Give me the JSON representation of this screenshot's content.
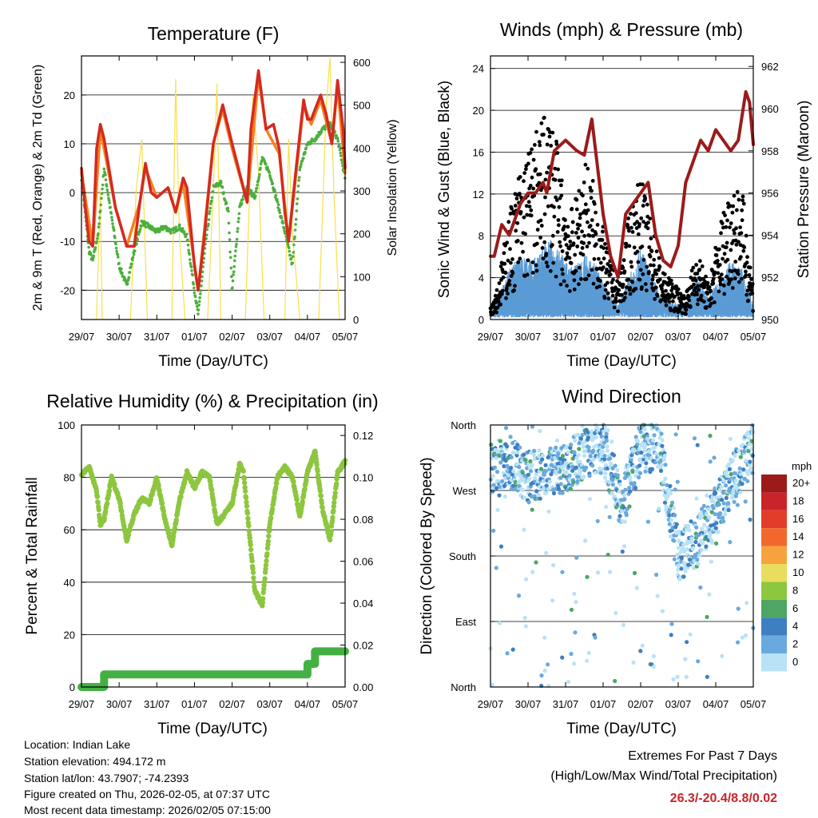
{
  "x_ticks": [
    "29/07",
    "30/07",
    "31/07",
    "01/07",
    "02/07",
    "03/07",
    "04/07",
    "05/07"
  ],
  "chart_data": [
    {
      "type": "line",
      "title": "Temperature (F)",
      "xlabel": "Time (Day/UTC)",
      "ylabel": "2m & 9m T (Red, Orange) & 2m Td (Green)",
      "ylabel_right": "Solar Insolation (Yellow)",
      "ylim": [
        -26,
        28
      ],
      "ylim_right": [
        0,
        615
      ],
      "yticks": [
        -20,
        -10,
        0,
        10,
        20
      ],
      "yticks_right": [
        0,
        100,
        200,
        300,
        400,
        500,
        600
      ],
      "xlim": [
        0,
        7
      ],
      "series": [
        {
          "name": "2m T",
          "color": "#d42a20",
          "x": [
            0,
            0.1,
            0.2,
            0.3,
            0.4,
            0.5,
            0.6,
            0.9,
            1.2,
            1.4,
            1.55,
            1.7,
            1.85,
            2.0,
            2.15,
            2.3,
            2.5,
            2.7,
            2.8,
            3.0,
            3.1,
            3.25,
            3.5,
            3.75,
            4.0,
            4.1,
            4.2,
            4.4,
            4.5,
            4.7,
            4.9,
            5.1,
            5.25,
            5.4,
            5.5,
            5.7,
            5.9,
            6.0,
            6.1,
            6.35,
            6.5,
            6.65,
            6.8,
            6.95,
            7.0
          ],
          "y": [
            5,
            -3,
            -10,
            -11,
            9,
            14,
            11,
            -3,
            -11,
            -11,
            -2,
            6,
            0,
            -1,
            0,
            1,
            -4,
            3,
            1,
            -15,
            -20,
            -10,
            10,
            18,
            10,
            7,
            4,
            -2,
            13,
            25,
            13,
            14,
            9,
            -4,
            -10,
            5,
            19,
            15,
            15,
            20,
            16,
            10,
            23,
            13,
            5
          ]
        },
        {
          "name": "9m T",
          "color": "#f5821f",
          "x": [
            0,
            0.3,
            0.5,
            0.9,
            1.2,
            1.55,
            1.7,
            2.0,
            2.3,
            2.5,
            2.7,
            3.1,
            3.5,
            3.75,
            4.0,
            4.4,
            4.7,
            4.9,
            5.25,
            5.5,
            5.9,
            6.1,
            6.35,
            6.65,
            6.8,
            7.0
          ],
          "y": [
            4,
            -11,
            13,
            -3,
            -11,
            -2,
            5,
            -1,
            1,
            -4,
            2,
            -20,
            10,
            17,
            9,
            -2,
            24,
            13,
            8,
            -10,
            18,
            14,
            19,
            10,
            22,
            4
          ]
        },
        {
          "name": "2m Td",
          "color": "#4caf3d",
          "x": [
            0,
            0.2,
            0.3,
            0.45,
            0.6,
            0.8,
            1.0,
            1.2,
            1.4,
            1.6,
            1.8,
            2.0,
            2.2,
            2.4,
            2.6,
            2.8,
            3.0,
            3.1,
            3.3,
            3.5,
            3.7,
            3.9,
            4.0,
            4.2,
            4.4,
            4.6,
            4.8,
            5.0,
            5.2,
            5.4,
            5.6,
            5.8,
            6.0,
            6.2,
            6.4,
            6.6,
            6.8,
            7.0
          ],
          "y": [
            3,
            -12,
            -14,
            -8,
            5,
            -5,
            -15,
            -19,
            -12,
            -6,
            -7,
            -8,
            -7,
            -8,
            -7,
            -9,
            -20,
            -25,
            -10,
            1,
            2,
            -4,
            -20,
            -3,
            1,
            -1,
            7,
            4,
            -2,
            -8,
            -15,
            5,
            10,
            11,
            13,
            14,
            11,
            3
          ]
        },
        {
          "name": "Solar Insolation",
          "color": "#f7e04a",
          "axis": "right",
          "x": [
            0,
            0.1,
            0.4,
            0.5,
            0.55,
            1.0,
            1.3,
            1.45,
            1.6,
            1.75,
            2.0,
            2.4,
            2.5,
            2.6,
            2.75,
            3.0,
            3.35,
            3.5,
            3.6,
            3.7,
            4.0,
            4.35,
            4.55,
            4.7,
            4.85,
            5.0,
            5.4,
            5.5,
            5.6,
            5.8,
            6.0,
            6.3,
            6.5,
            6.6,
            6.7,
            6.85,
            7.0
          ],
          "y": [
            0,
            0,
            0,
            300,
            0,
            0,
            0,
            300,
            420,
            0,
            0,
            0,
            560,
            200,
            0,
            0,
            0,
            300,
            550,
            0,
            0,
            0,
            520,
            340,
            0,
            0,
            0,
            420,
            200,
            0,
            0,
            0,
            500,
            610,
            300,
            0,
            0
          ]
        }
      ]
    },
    {
      "type": "scatter",
      "title": "Winds (mph) & Pressure (mb)",
      "xlabel": "Time (Day/UTC)",
      "ylabel": "Sonic Wind & Gust (Blue, Black)",
      "ylabel_right": "Station Pressure (Maroon)",
      "ylim": [
        0,
        25.2
      ],
      "ylim_right": [
        950,
        962.5
      ],
      "yticks": [
        0,
        4,
        8,
        12,
        16,
        20,
        24
      ],
      "yticks_right": [
        950,
        952,
        954,
        956,
        958,
        960,
        962
      ],
      "xlim": [
        0,
        7
      ],
      "series": [
        {
          "name": "Gust envelope",
          "color": "#000000",
          "x": [
            0,
            0.2,
            0.5,
            0.8,
            1.1,
            1.4,
            1.6,
            1.9,
            2.2,
            2.5,
            2.8,
            3.1,
            3.4,
            3.7,
            4.0,
            4.3,
            4.6,
            4.9,
            5.2,
            5.5,
            5.8,
            6.1,
            6.4,
            6.7,
            7.0
          ],
          "y": [
            1.5,
            3,
            9,
            13,
            15,
            17,
            18,
            12,
            9,
            14,
            11,
            6,
            3,
            9,
            12,
            8,
            4,
            3,
            2,
            6,
            3,
            8,
            12,
            11,
            3
          ]
        },
        {
          "name": "Sonic wind envelope",
          "color": "#5b9bd5",
          "x": [
            0,
            0.2,
            0.5,
            0.8,
            1.1,
            1.4,
            1.6,
            1.9,
            2.2,
            2.5,
            2.8,
            3.1,
            3.4,
            3.7,
            4.0,
            4.3,
            4.6,
            4.9,
            5.2,
            5.5,
            5.8,
            6.1,
            6.4,
            6.7,
            7.0
          ],
          "y": [
            0.8,
            1.5,
            3.5,
            4.5,
            4,
            5,
            5.5,
            4.5,
            3.5,
            4.5,
            3.8,
            2,
            1,
            3,
            5,
            3,
            1.5,
            1.2,
            1,
            3,
            1.5,
            3,
            4,
            3.5,
            1
          ]
        },
        {
          "name": "Station Pressure",
          "color": "#9b1b1b",
          "axis": "right",
          "x": [
            0,
            0.1,
            0.3,
            0.5,
            0.8,
            1.0,
            1.2,
            1.4,
            1.5,
            1.7,
            2.0,
            2.3,
            2.5,
            2.7,
            2.8,
            3.0,
            3.2,
            3.4,
            3.6,
            3.8,
            4.0,
            4.2,
            4.4,
            4.6,
            4.8,
            5.0,
            5.2,
            5.4,
            5.6,
            5.8,
            6.0,
            6.2,
            6.4,
            6.6,
            6.8,
            6.9,
            7.0
          ],
          "y": [
            953,
            953,
            954.5,
            954,
            955.5,
            956,
            956,
            956.5,
            956,
            958,
            958.5,
            958,
            957.8,
            959.5,
            958,
            955,
            953,
            952,
            955,
            955.5,
            956,
            956.5,
            954,
            952.8,
            952.5,
            953.5,
            956.5,
            957.5,
            958.5,
            958,
            959,
            958.5,
            958,
            958.5,
            960.8,
            960.3,
            958.3
          ]
        }
      ]
    },
    {
      "type": "line",
      "title": "Relative Humidity (%) & Precipitation (in)",
      "xlabel": "Time (Day/UTC)",
      "ylabel": "Percent & Total Rainfall",
      "ylim": [
        0,
        100
      ],
      "ylim_right": [
        0,
        0.125
      ],
      "yticks": [
        0,
        20,
        40,
        60,
        80,
        100
      ],
      "yticks_right": [
        "0.00",
        "0.02",
        "0.04",
        "0.06",
        "0.08",
        "0.10",
        "0.12"
      ],
      "xlim": [
        0,
        7
      ],
      "series": [
        {
          "name": "Relative Humidity",
          "color": "#8dc63f",
          "x": [
            0,
            0.2,
            0.4,
            0.5,
            0.6,
            0.8,
            1.0,
            1.2,
            1.4,
            1.6,
            1.8,
            2.0,
            2.2,
            2.4,
            2.6,
            2.8,
            3.0,
            3.2,
            3.4,
            3.6,
            3.8,
            4.0,
            4.2,
            4.3,
            4.45,
            4.6,
            4.8,
            5.0,
            5.2,
            5.4,
            5.6,
            5.8,
            6.0,
            6.2,
            6.4,
            6.6,
            6.8,
            7.0
          ],
          "y": [
            81,
            84,
            75,
            62,
            64,
            80,
            72,
            56,
            66,
            72,
            70,
            80,
            65,
            54,
            71,
            82,
            76,
            82,
            80,
            62,
            66,
            70,
            85,
            82,
            60,
            37,
            31,
            62,
            80,
            84,
            80,
            65,
            82,
            90,
            68,
            56,
            82,
            86
          ]
        },
        {
          "name": "Total Precipitation",
          "color": "#44b044",
          "axis": "right",
          "x": [
            0,
            0.6,
            0.6,
            6.0,
            6.0,
            6.2,
            6.2,
            7.0
          ],
          "y": [
            0,
            0,
            0.006,
            0.006,
            0.011,
            0.011,
            0.017,
            0.017
          ]
        }
      ]
    },
    {
      "type": "scatter",
      "title": "Wind Direction",
      "xlabel": "Time (Day/UTC)",
      "ylabel": "Direction (Colored By Speed)",
      "y_categories": [
        "North",
        "West",
        "South",
        "East",
        "North"
      ],
      "xlim": [
        0,
        7
      ],
      "legend_title": "mph",
      "legend_labels": [
        "20+",
        "18",
        "16",
        "14",
        "12",
        "10",
        "8",
        "6",
        "4",
        "2",
        "0"
      ],
      "legend_colors": [
        "#9b1b1b",
        "#c8242a",
        "#e23c2b",
        "#f2672c",
        "#f8a23e",
        "#e8dd5c",
        "#8dc63f",
        "#4ea564",
        "#3d7fc1",
        "#6aa9dd",
        "#b8e2f6"
      ],
      "series": [
        {
          "name": "Direction mean",
          "color": "#3d7fc1",
          "x": [
            0,
            0.5,
            1.0,
            1.5,
            2.0,
            2.5,
            3.0,
            3.5,
            4.0,
            4.5,
            5.0,
            5.5,
            6.0,
            6.5,
            7.0
          ],
          "y": [
            300,
            310,
            290,
            295,
            300,
            320,
            330,
            250,
            330,
            330,
            180,
            200,
            240,
            290,
            330
          ]
        }
      ]
    }
  ],
  "footer": {
    "location": "Location: Indian Lake",
    "elevation": "Station elevation: 494.172 m",
    "latlon": "Station lat/lon: 43.7907; -74.2393",
    "created": "Figure created on Thu, 2026-02-05, at 07:37 UTC",
    "recent": "Most recent data timestamp: 2026/02/05 07:15:00"
  },
  "extremes": {
    "line1": "Extremes For Past 7 Days",
    "line2": "(High/Low/Max Wind/Total Precipitation)",
    "value": "26.3/-20.4/8.8/0.02"
  }
}
